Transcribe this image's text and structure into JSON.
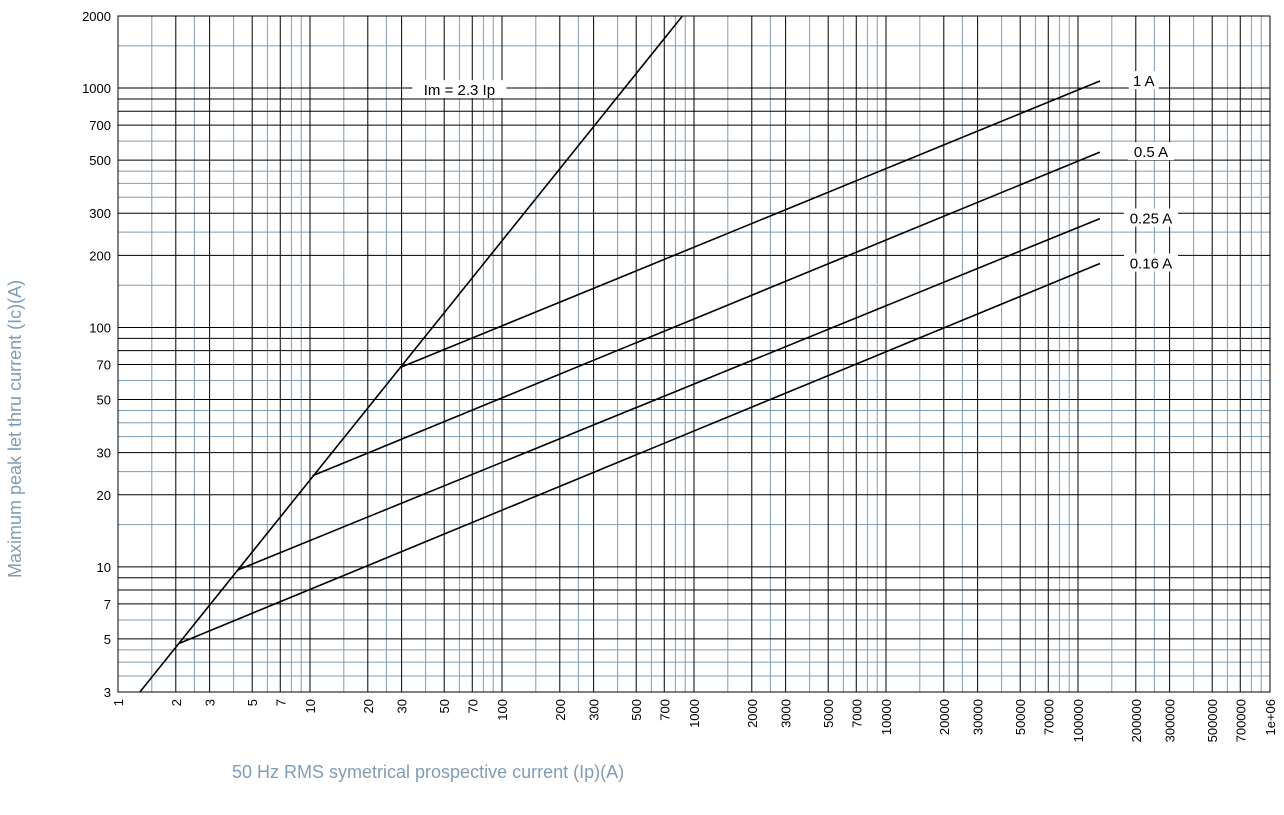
{
  "chart_data": {
    "type": "line",
    "xlabel": "50 Hz RMS symetrical prospective current (Ip)(A)",
    "ylabel": "Maximum peak let thru current (Ic)(A)",
    "x_scale": "log",
    "y_scale": "log",
    "xlim": [
      1,
      1000000
    ],
    "ylim": [
      3,
      2000
    ],
    "grid": true,
    "x_ticks": [
      "1",
      "2",
      "3",
      "5",
      "7",
      "10",
      "20",
      "30",
      "50",
      "70",
      "100",
      "200",
      "300",
      "500",
      "700",
      "1000",
      "2000",
      "3000",
      "5000",
      "7000",
      "10000",
      "20000",
      "30000",
      "50000",
      "70000",
      "100000",
      "200000",
      "300000",
      "500000",
      "700000",
      "1e+06"
    ],
    "x_tick_values": [
      1,
      2,
      3,
      5,
      7,
      10,
      20,
      30,
      50,
      70,
      100,
      200,
      300,
      500,
      700,
      1000,
      2000,
      3000,
      5000,
      7000,
      10000,
      20000,
      30000,
      50000,
      70000,
      100000,
      200000,
      300000,
      500000,
      700000,
      1000000
    ],
    "y_ticks": [
      "3",
      "5",
      "7",
      "10",
      "20",
      "30",
      "50",
      "70",
      "100",
      "200",
      "300",
      "500",
      "700",
      "1000",
      "2000"
    ],
    "y_tick_values": [
      3,
      5,
      7,
      10,
      20,
      30,
      50,
      70,
      100,
      200,
      300,
      500,
      700,
      1000,
      2000
    ],
    "series": [
      {
        "name": "Im = 2.3 Ip",
        "x": [
          1.3,
          870
        ],
        "y": [
          3,
          2000
        ]
      },
      {
        "name": "1 A",
        "x": [
          29.5,
          130000
        ],
        "y": [
          68,
          1070
        ]
      },
      {
        "name": "0.5 A",
        "x": [
          10.3,
          130000
        ],
        "y": [
          24,
          540
        ]
      },
      {
        "name": "0.25 A",
        "x": [
          4.2,
          130000
        ],
        "y": [
          9.7,
          285
        ]
      },
      {
        "name": "0.16 A",
        "x": [
          2.1,
          130000
        ],
        "y": [
          4.8,
          185
        ]
      }
    ],
    "annotations": [
      {
        "text": "Im = 2.3 Ip",
        "x": 60,
        "y": 980
      },
      {
        "text": "1 A",
        "x": 220000,
        "y": 1070
      },
      {
        "text": "0.5 A",
        "x": 240000,
        "y": 540
      },
      {
        "text": "0.25 A",
        "x": 240000,
        "y": 285
      },
      {
        "text": "0.16 A",
        "x": 240000,
        "y": 185
      }
    ]
  }
}
